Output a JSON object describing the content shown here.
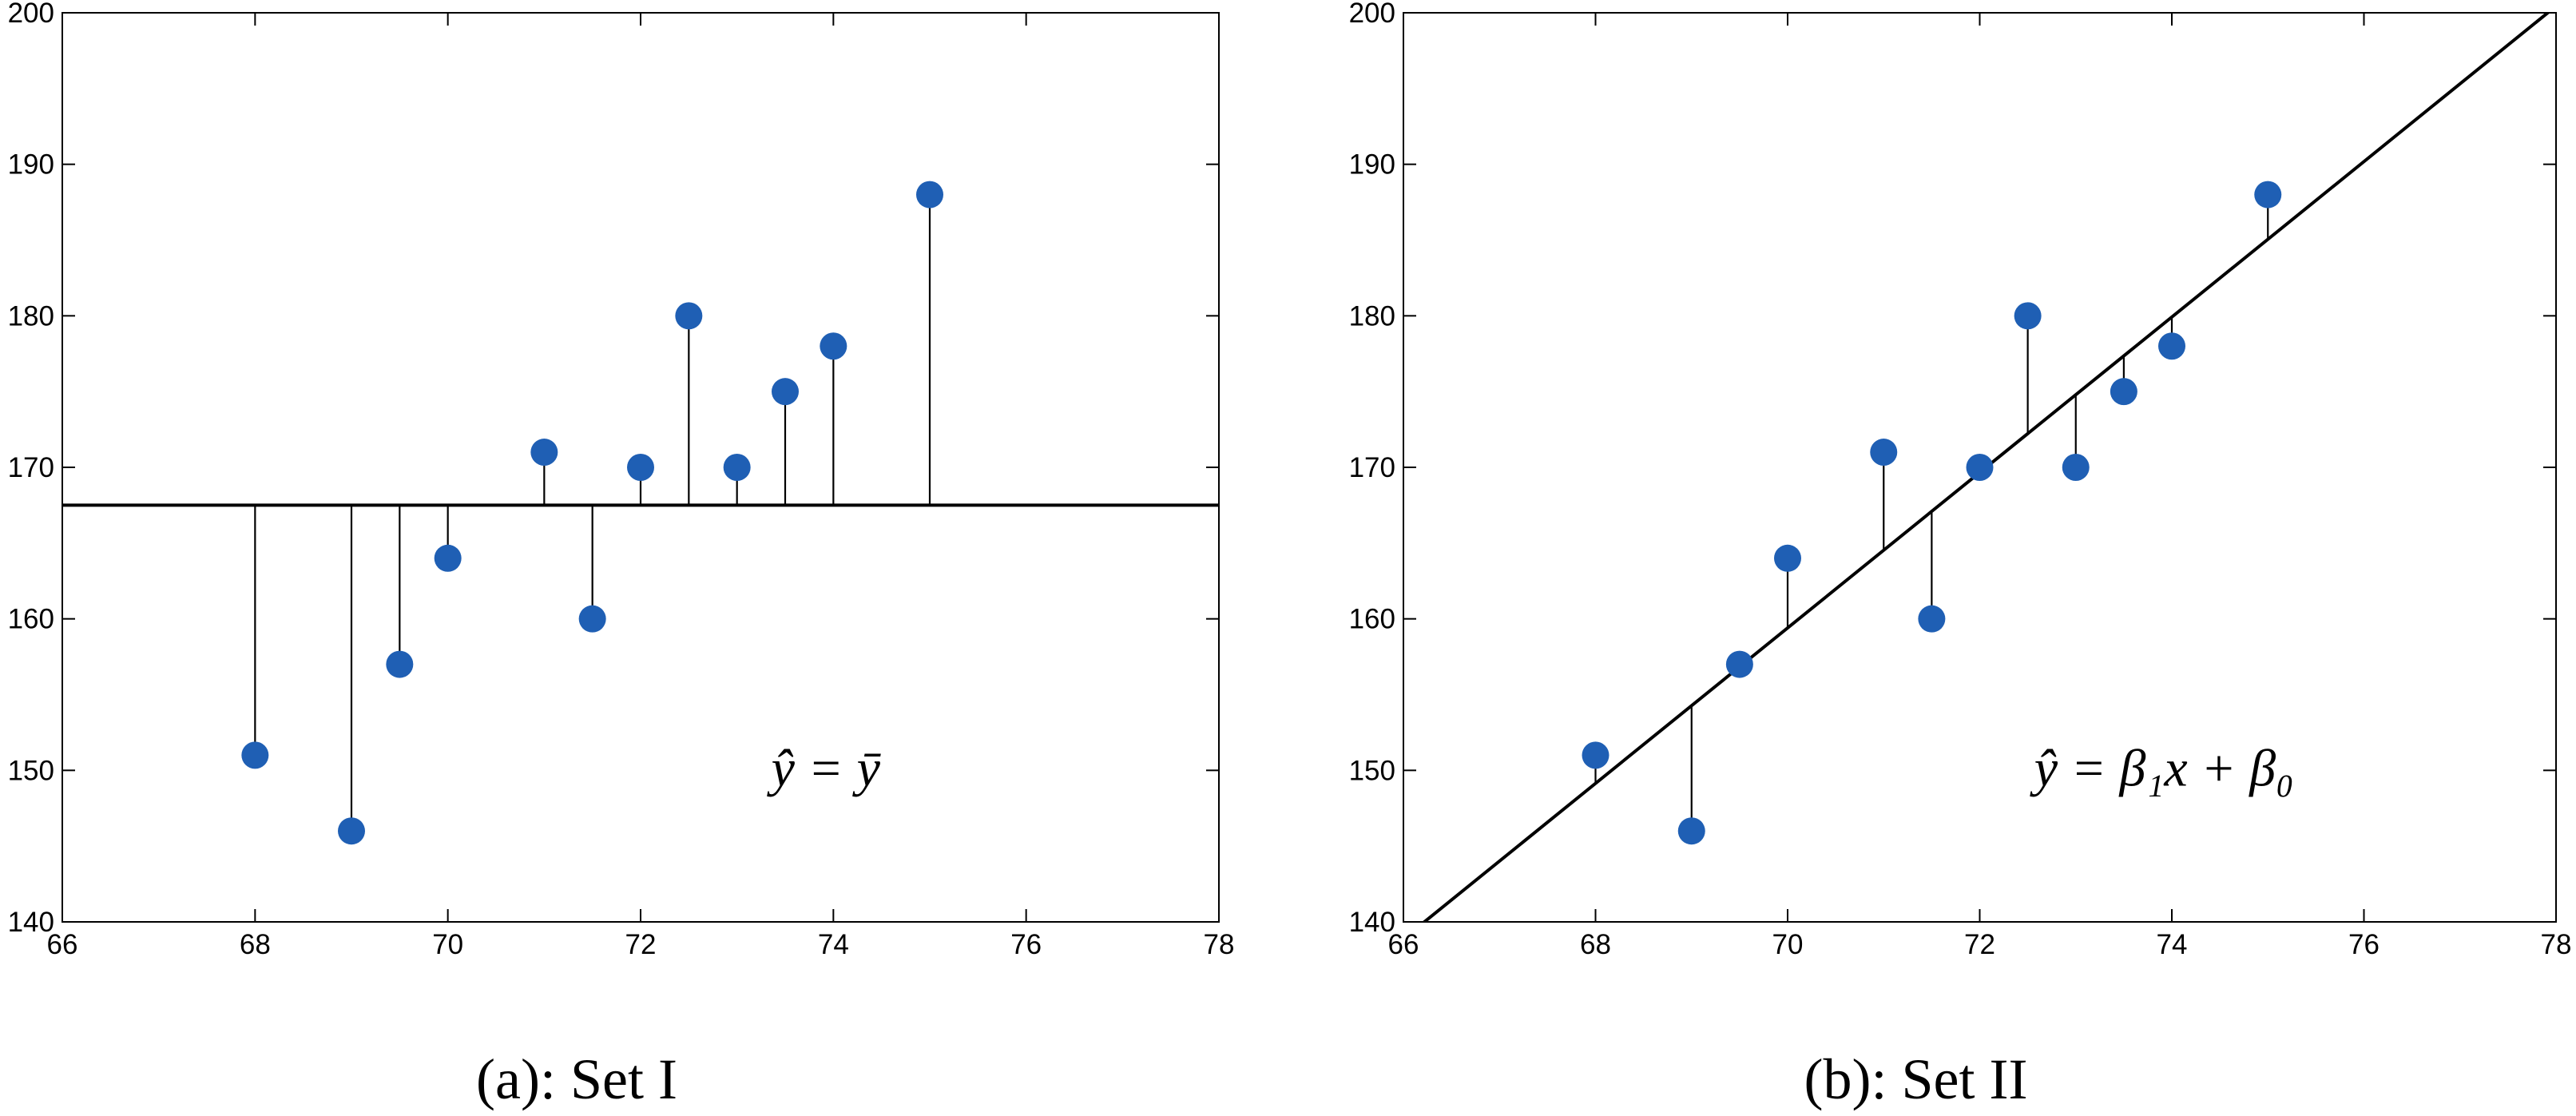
{
  "chart_data": [
    {
      "type": "scatter",
      "caption": "(a): Set I",
      "annotation": "ŷ = ȳ",
      "x": [
        68,
        69,
        69.5,
        70,
        71,
        71.5,
        72,
        72.5,
        73,
        73.5,
        74,
        75
      ],
      "y": [
        151,
        146,
        157,
        164,
        171,
        160,
        170,
        180,
        170,
        175,
        178,
        188
      ],
      "color": "#1f5fb4",
      "fit_line": {
        "slope": 0,
        "intercept": 167.5
      },
      "xlim": [
        66,
        78
      ],
      "xticks": [
        66,
        68,
        70,
        72,
        74,
        76,
        78
      ],
      "ylim": [
        140,
        200
      ],
      "yticks": [
        140,
        150,
        160,
        170,
        180,
        190,
        200
      ]
    },
    {
      "type": "scatter",
      "caption": "(b): Set II",
      "annotation": "ŷ = β₁x + β₀",
      "x": [
        68,
        69,
        69.5,
        70,
        71,
        71.5,
        72,
        72.5,
        73,
        73.5,
        74,
        75
      ],
      "y": [
        151,
        146,
        157,
        164,
        171,
        160,
        170,
        180,
        170,
        175,
        178,
        188
      ],
      "color": "#1f5fb4",
      "fit_line": {
        "slope": 5.13,
        "intercept": -199.7
      },
      "xlim": [
        66,
        78
      ],
      "xticks": [
        66,
        68,
        70,
        72,
        74,
        76,
        78
      ],
      "ylim": [
        140,
        200
      ],
      "yticks": [
        140,
        150,
        160,
        170,
        180,
        190,
        200
      ]
    }
  ]
}
